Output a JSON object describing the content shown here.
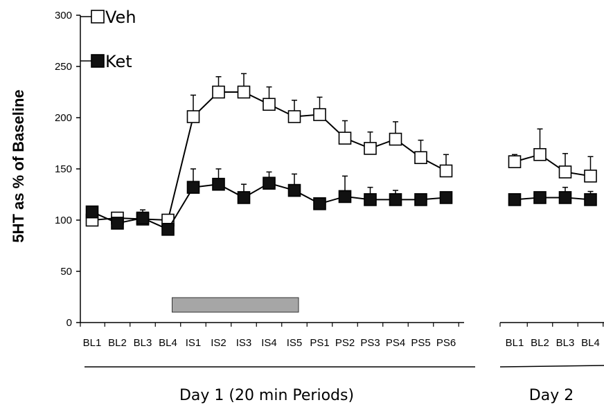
{
  "chart_data": {
    "type": "line",
    "ylabel": "5HT as % of Baseline",
    "ylim": [
      0,
      300
    ],
    "yticks": [
      0,
      50,
      100,
      150,
      200,
      250,
      300
    ],
    "groups": [
      {
        "label": "Day 1 (20 min Periods)",
        "categories": [
          "BL1",
          "BL2",
          "BL3",
          "BL4",
          "IS1",
          "IS2",
          "IS3",
          "IS4",
          "IS5",
          "PS1",
          "PS2",
          "PS3",
          "PS4",
          "PS5",
          "PS6"
        ]
      },
      {
        "label": "Day 2",
        "categories": [
          "BL1",
          "BL2",
          "BL3",
          "BL4"
        ]
      }
    ],
    "series": [
      {
        "name": "Veh",
        "marker": "open-square",
        "day1": [
          100,
          102,
          101,
          100,
          201,
          225,
          225,
          213,
          201,
          203,
          180,
          170,
          179,
          161,
          148
        ],
        "day1_err": [
          4,
          3,
          4,
          3,
          21,
          15,
          18,
          17,
          16,
          17,
          17,
          16,
          17,
          17,
          16
        ],
        "day2": [
          157,
          164,
          147,
          143
        ],
        "day2_err": [
          7,
          25,
          18,
          19
        ]
      },
      {
        "name": "Ket",
        "marker": "filled-square",
        "day1": [
          108,
          97,
          102,
          91,
          132,
          135,
          122,
          136,
          129,
          116,
          123,
          120,
          120,
          120,
          122
        ],
        "day1_err": [
          4,
          3,
          8,
          3,
          18,
          15,
          13,
          11,
          16,
          4,
          20,
          12,
          9,
          4,
          4
        ],
        "day2": [
          120,
          122,
          122,
          120
        ],
        "day2_err": [
          3,
          4,
          10,
          8
        ]
      }
    ],
    "stimulus_bar": {
      "start": "BL4",
      "end": "IS5",
      "color": "#a6a6a6"
    },
    "grid": false,
    "legend_position": "top-left"
  }
}
